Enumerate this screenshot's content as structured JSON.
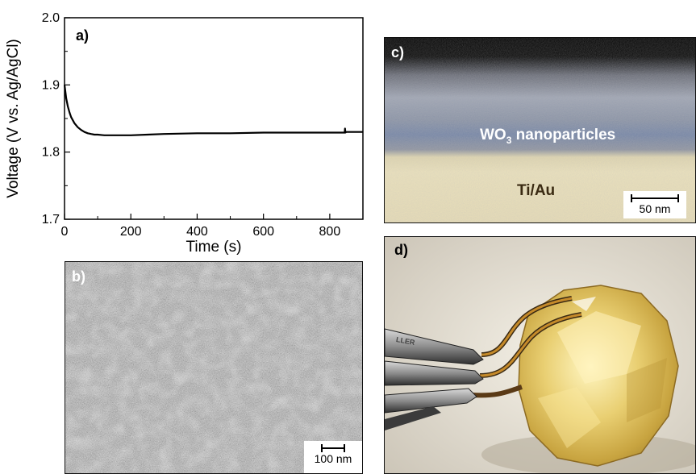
{
  "chart_data": {
    "type": "line",
    "xlabel": "Time (s)",
    "ylabel": "Voltage (V vs. Ag/AgCl)",
    "xlim": [
      0,
      900
    ],
    "ylim": [
      1.7,
      2.0
    ],
    "xticks": [
      "0",
      "200",
      "400",
      "600",
      "800"
    ],
    "yticks": [
      "1.7",
      "1.8",
      "1.9",
      "2.0"
    ],
    "grid": false,
    "series": [
      {
        "x": [
          0,
          5,
          10,
          15,
          20,
          30,
          40,
          50,
          60,
          70,
          80,
          90,
          100,
          120,
          140,
          160,
          180,
          200,
          250,
          300,
          400,
          500,
          600,
          700,
          800,
          845,
          846,
          847,
          850,
          900
        ],
        "y": [
          1.9,
          1.88,
          1.868,
          1.859,
          1.852,
          1.843,
          1.837,
          1.833,
          1.83,
          1.828,
          1.827,
          1.826,
          1.826,
          1.825,
          1.825,
          1.825,
          1.825,
          1.825,
          1.826,
          1.827,
          1.828,
          1.828,
          1.829,
          1.829,
          1.829,
          1.829,
          1.835,
          1.829,
          1.83,
          1.83
        ],
        "color": "#000000"
      }
    ]
  },
  "panel_a": {
    "label": "a)"
  },
  "panel_b": {
    "label": "b)",
    "scale_label": "100 nm"
  },
  "panel_c": {
    "label": "c)",
    "layer_top": "WO",
    "layer_top_sub": "3",
    "layer_top_rest": " nanoparticles",
    "layer_bottom": "Ti/Au",
    "scale_label": "50 nm"
  },
  "panel_d": {
    "label": "d)",
    "clip_text": "LLER"
  }
}
